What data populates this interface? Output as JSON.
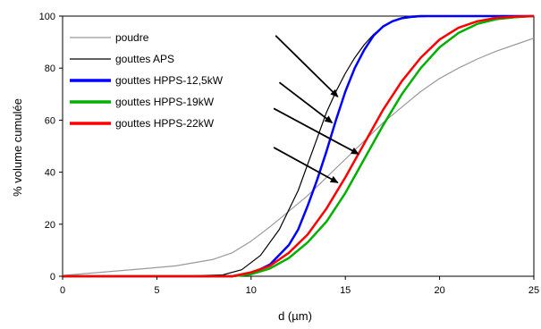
{
  "chart_data": {
    "type": "line",
    "title": "",
    "xlabel": "d (µm)",
    "ylabel": "% volume cumulée",
    "xlim": [
      0,
      25
    ],
    "ylim": [
      0,
      100
    ],
    "xticks": [
      0,
      5,
      10,
      15,
      20,
      25
    ],
    "yticks": [
      0,
      20,
      40,
      60,
      80,
      100
    ],
    "grid": false,
    "legend_position": "top-left",
    "series": [
      {
        "name": "poudre",
        "color": "#9a9a9a",
        "line_weight": "thin",
        "x": [
          0,
          2,
          4,
          6,
          8,
          9,
          10,
          11,
          12,
          13,
          14,
          15,
          16,
          17,
          18,
          19,
          20,
          21,
          22,
          23,
          24,
          25
        ],
        "y": [
          0.3,
          1.5,
          2.7,
          4,
          6.5,
          9,
          13.5,
          19,
          25,
          31,
          38,
          45,
          52,
          59,
          65,
          71,
          76,
          80,
          83.5,
          86.5,
          89,
          91.5
        ]
      },
      {
        "name": "gouttes APS",
        "color": "#000000",
        "line_weight": "thin",
        "x": [
          0,
          6,
          8.5,
          9.5,
          10.5,
          11.5,
          12.5,
          13,
          13.5,
          14,
          14.5,
          15,
          15.5,
          16,
          16.5,
          17,
          17.5,
          18,
          18.5,
          19,
          20,
          25
        ],
        "y": [
          0,
          0,
          0.5,
          2.5,
          8,
          18,
          33,
          43,
          53,
          63,
          71,
          78,
          84,
          89,
          93,
          96,
          98,
          99,
          99.5,
          99.8,
          100,
          100
        ]
      },
      {
        "name": "gouttes HPPS-12,5kW",
        "color": "#0000ff",
        "line_weight": "thick",
        "x": [
          0,
          9,
          10,
          11,
          12,
          12.5,
          13,
          13.5,
          14,
          14.5,
          15,
          15.5,
          16,
          16.5,
          17,
          17.5,
          18,
          18.5,
          19,
          20,
          25
        ],
        "y": [
          0,
          0,
          1,
          4.5,
          12,
          18,
          27,
          37,
          48,
          60,
          71,
          80,
          87,
          92.5,
          96,
          98,
          99.2,
          99.8,
          100,
          100,
          100
        ]
      },
      {
        "name": "gouttes HPPS-19kW",
        "color": "#00b000",
        "line_weight": "thick",
        "x": [
          0,
          9,
          10,
          11,
          12,
          13,
          14,
          15,
          16,
          17,
          18,
          19,
          20,
          21,
          22,
          23,
          24,
          25
        ],
        "y": [
          0,
          0,
          0.8,
          3,
          7,
          13,
          21,
          32,
          45,
          58,
          70,
          80,
          88,
          93.5,
          97,
          98.8,
          99.6,
          100
        ]
      },
      {
        "name": "gouttes HPPS-22kW",
        "color": "#ff0000",
        "line_weight": "thick",
        "x": [
          0,
          9,
          10,
          11,
          12,
          13,
          14,
          15,
          16,
          17,
          18,
          19,
          20,
          21,
          22,
          23,
          24,
          25
        ],
        "y": [
          0,
          0,
          1.5,
          4,
          9,
          16,
          26,
          38,
          51,
          64,
          75,
          84,
          91,
          95.5,
          98,
          99.3,
          99.8,
          100
        ]
      }
    ],
    "annotations": [
      {
        "type": "arrow",
        "from": [
          11.3,
          92.5
        ],
        "to": [
          14.6,
          69
        ]
      },
      {
        "type": "arrow",
        "from": [
          11.5,
          74.5
        ],
        "to": [
          14.3,
          59
        ]
      },
      {
        "type": "arrow",
        "from": [
          11.2,
          64.5
        ],
        "to": [
          15.7,
          47
        ]
      },
      {
        "type": "arrow",
        "from": [
          11.2,
          49.5
        ],
        "to": [
          14.6,
          36
        ]
      }
    ]
  }
}
